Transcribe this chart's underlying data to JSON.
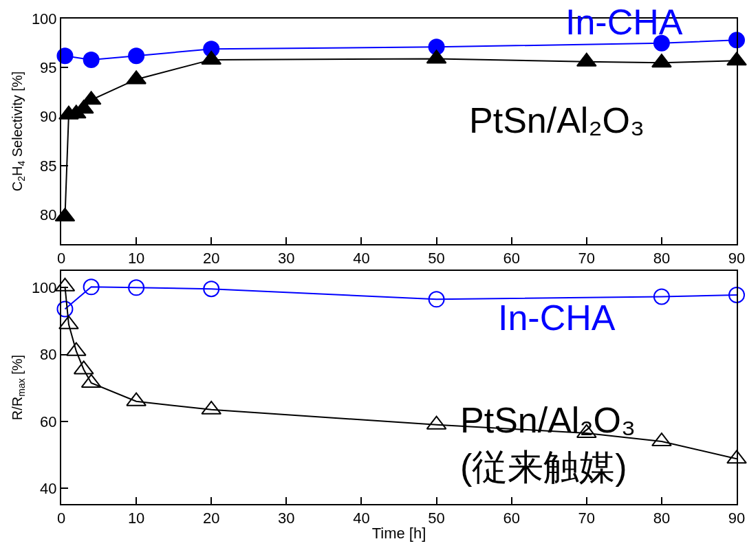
{
  "chart_data": [
    {
      "type": "line",
      "ylabel": "C$_{2}$H$_{4}$ Selectivity [%]",
      "xlim": [
        0,
        90
      ],
      "xticks": [
        0,
        10,
        20,
        30,
        40,
        50,
        60,
        70,
        80,
        90
      ],
      "ylim": [
        77,
        100
      ],
      "yticks": [
        80,
        85,
        90,
        95,
        100
      ],
      "grid": false,
      "legend": false,
      "line_style": "solid",
      "series": [
        {
          "name": "In-CHA",
          "color": "#0000ff",
          "marker": "circle",
          "x": [
            0.5,
            4,
            10,
            20,
            50,
            80,
            90
          ],
          "values": [
            96.2,
            95.8,
            96.2,
            96.9,
            97.1,
            97.5,
            97.8
          ]
        },
        {
          "name": "PtSn/Al₂O₃",
          "color": "#000000",
          "marker": "triangle",
          "x": [
            0.5,
            1,
            2,
            3,
            4,
            10,
            20,
            50,
            70,
            80,
            90
          ],
          "values": [
            79.8,
            90.2,
            90.3,
            90.8,
            91.7,
            93.8,
            95.8,
            95.9,
            95.6,
            95.5,
            95.7
          ]
        }
      ]
    },
    {
      "type": "line",
      "xlabel": "Time [h]",
      "ylabel": "R/R$_{max}$ [%]",
      "xlim": [
        0,
        90
      ],
      "xticks": [
        0,
        10,
        20,
        30,
        40,
        50,
        60,
        70,
        80,
        90
      ],
      "ylim": [
        35.3,
        105
      ],
      "yticks": [
        40,
        60,
        80,
        100
      ],
      "grid": false,
      "legend": false,
      "line_style": "solid",
      "series": [
        {
          "name": "In-CHA",
          "color": "#0000ff",
          "marker": "circle",
          "x": [
            0.5,
            4,
            10,
            20,
            50,
            80,
            90
          ],
          "values": [
            93.6,
            100.2,
            100,
            99.6,
            96.5,
            97.3,
            97.8
          ]
        },
        {
          "name": "PtSn/Al₂O₃\n(従来触媒)",
          "color": "#000000",
          "marker": "triangle",
          "x": [
            0.5,
            1,
            2,
            3,
            4,
            10,
            20,
            50,
            70,
            80,
            90
          ],
          "values": [
            100.3,
            89,
            81,
            75.5,
            71.5,
            66,
            63.5,
            59,
            56.5,
            54,
            48.8
          ]
        }
      ]
    }
  ]
}
